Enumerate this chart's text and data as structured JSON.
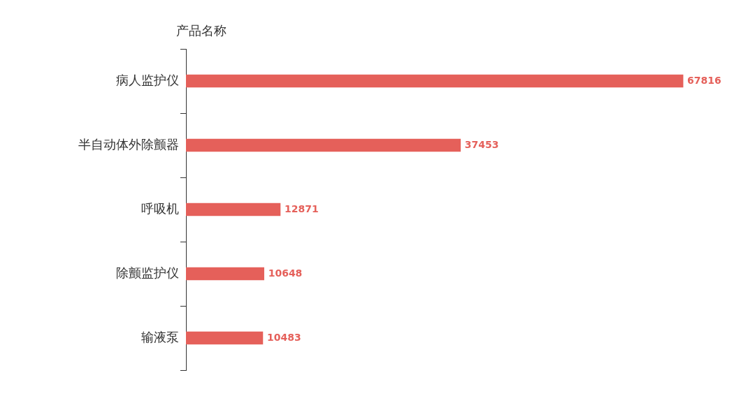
{
  "chart_data": {
    "type": "bar",
    "orientation": "horizontal",
    "ylabel": "产品名称",
    "categories": [
      "病人监护仪",
      "半自动体外除颤器",
      "呼吸机",
      "除颤监护仪",
      "输液泵"
    ],
    "values": [
      67816,
      37453,
      12871,
      10648,
      10483
    ],
    "color": "#e5605a",
    "data_labels": true,
    "legend": false,
    "tick_labels": "y"
  }
}
